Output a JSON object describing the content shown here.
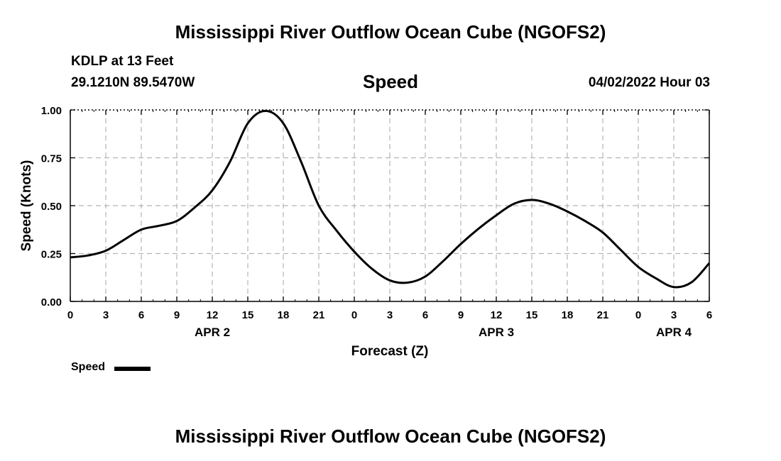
{
  "header": {
    "title": "Mississippi River Outflow Ocean Cube (NGOFS2)",
    "station": "KDLP at 13 Feet",
    "coords": "29.1210N  89.5470W",
    "variable": "Speed",
    "datetime": "04/02/2022 Hour 03"
  },
  "footer": {
    "title": "Mississippi River Outflow Ocean Cube (NGOFS2)"
  },
  "legend": {
    "label": "Speed"
  },
  "colors": {
    "line": "#000000",
    "grid": "#b4b4b4"
  },
  "chart_data": {
    "type": "line",
    "title": "Speed",
    "xlabel": "Forecast (Z)",
    "ylabel": "Speed (Knots)",
    "xlim": [
      0,
      54
    ],
    "ylim": [
      0,
      1
    ],
    "x_unit": "forecast hour (Z)",
    "xticks": [
      0,
      3,
      6,
      9,
      12,
      15,
      18,
      21,
      24,
      27,
      30,
      33,
      36,
      39,
      42,
      45,
      48,
      51,
      54
    ],
    "xtick_labels": [
      "0",
      "3",
      "6",
      "9",
      "12",
      "15",
      "18",
      "21",
      "0",
      "3",
      "6",
      "9",
      "12",
      "15",
      "18",
      "21",
      "0",
      "3",
      "6"
    ],
    "yticks": [
      0,
      0.25,
      0.5,
      0.75,
      1.0
    ],
    "ytick_labels": [
      "0.00",
      "0.25",
      "0.50",
      "0.75",
      "1.00"
    ],
    "date_labels": [
      {
        "x": 12,
        "text": "APR 2"
      },
      {
        "x": 36,
        "text": "APR 3"
      },
      {
        "x": 51,
        "text": "APR 4"
      }
    ],
    "grid": true,
    "legend_position": "bottom-left",
    "series": [
      {
        "name": "Speed",
        "x": [
          0,
          1.5,
          3,
          4.5,
          6,
          7.5,
          9,
          10.5,
          12,
          13.5,
          15,
          16.5,
          18,
          19.5,
          21,
          22.5,
          24,
          25.5,
          27,
          28.5,
          30,
          31.5,
          33,
          34.5,
          36,
          37.5,
          39,
          40.5,
          42,
          43.5,
          45,
          46.5,
          48,
          49.5,
          51,
          52.5,
          54
        ],
        "values": [
          0.23,
          0.24,
          0.265,
          0.32,
          0.375,
          0.395,
          0.42,
          0.49,
          0.58,
          0.73,
          0.93,
          0.995,
          0.93,
          0.73,
          0.5,
          0.37,
          0.26,
          0.17,
          0.11,
          0.098,
          0.13,
          0.21,
          0.3,
          0.38,
          0.45,
          0.51,
          0.53,
          0.51,
          0.47,
          0.42,
          0.36,
          0.27,
          0.18,
          0.12,
          0.075,
          0.1,
          0.2
        ]
      }
    ]
  }
}
